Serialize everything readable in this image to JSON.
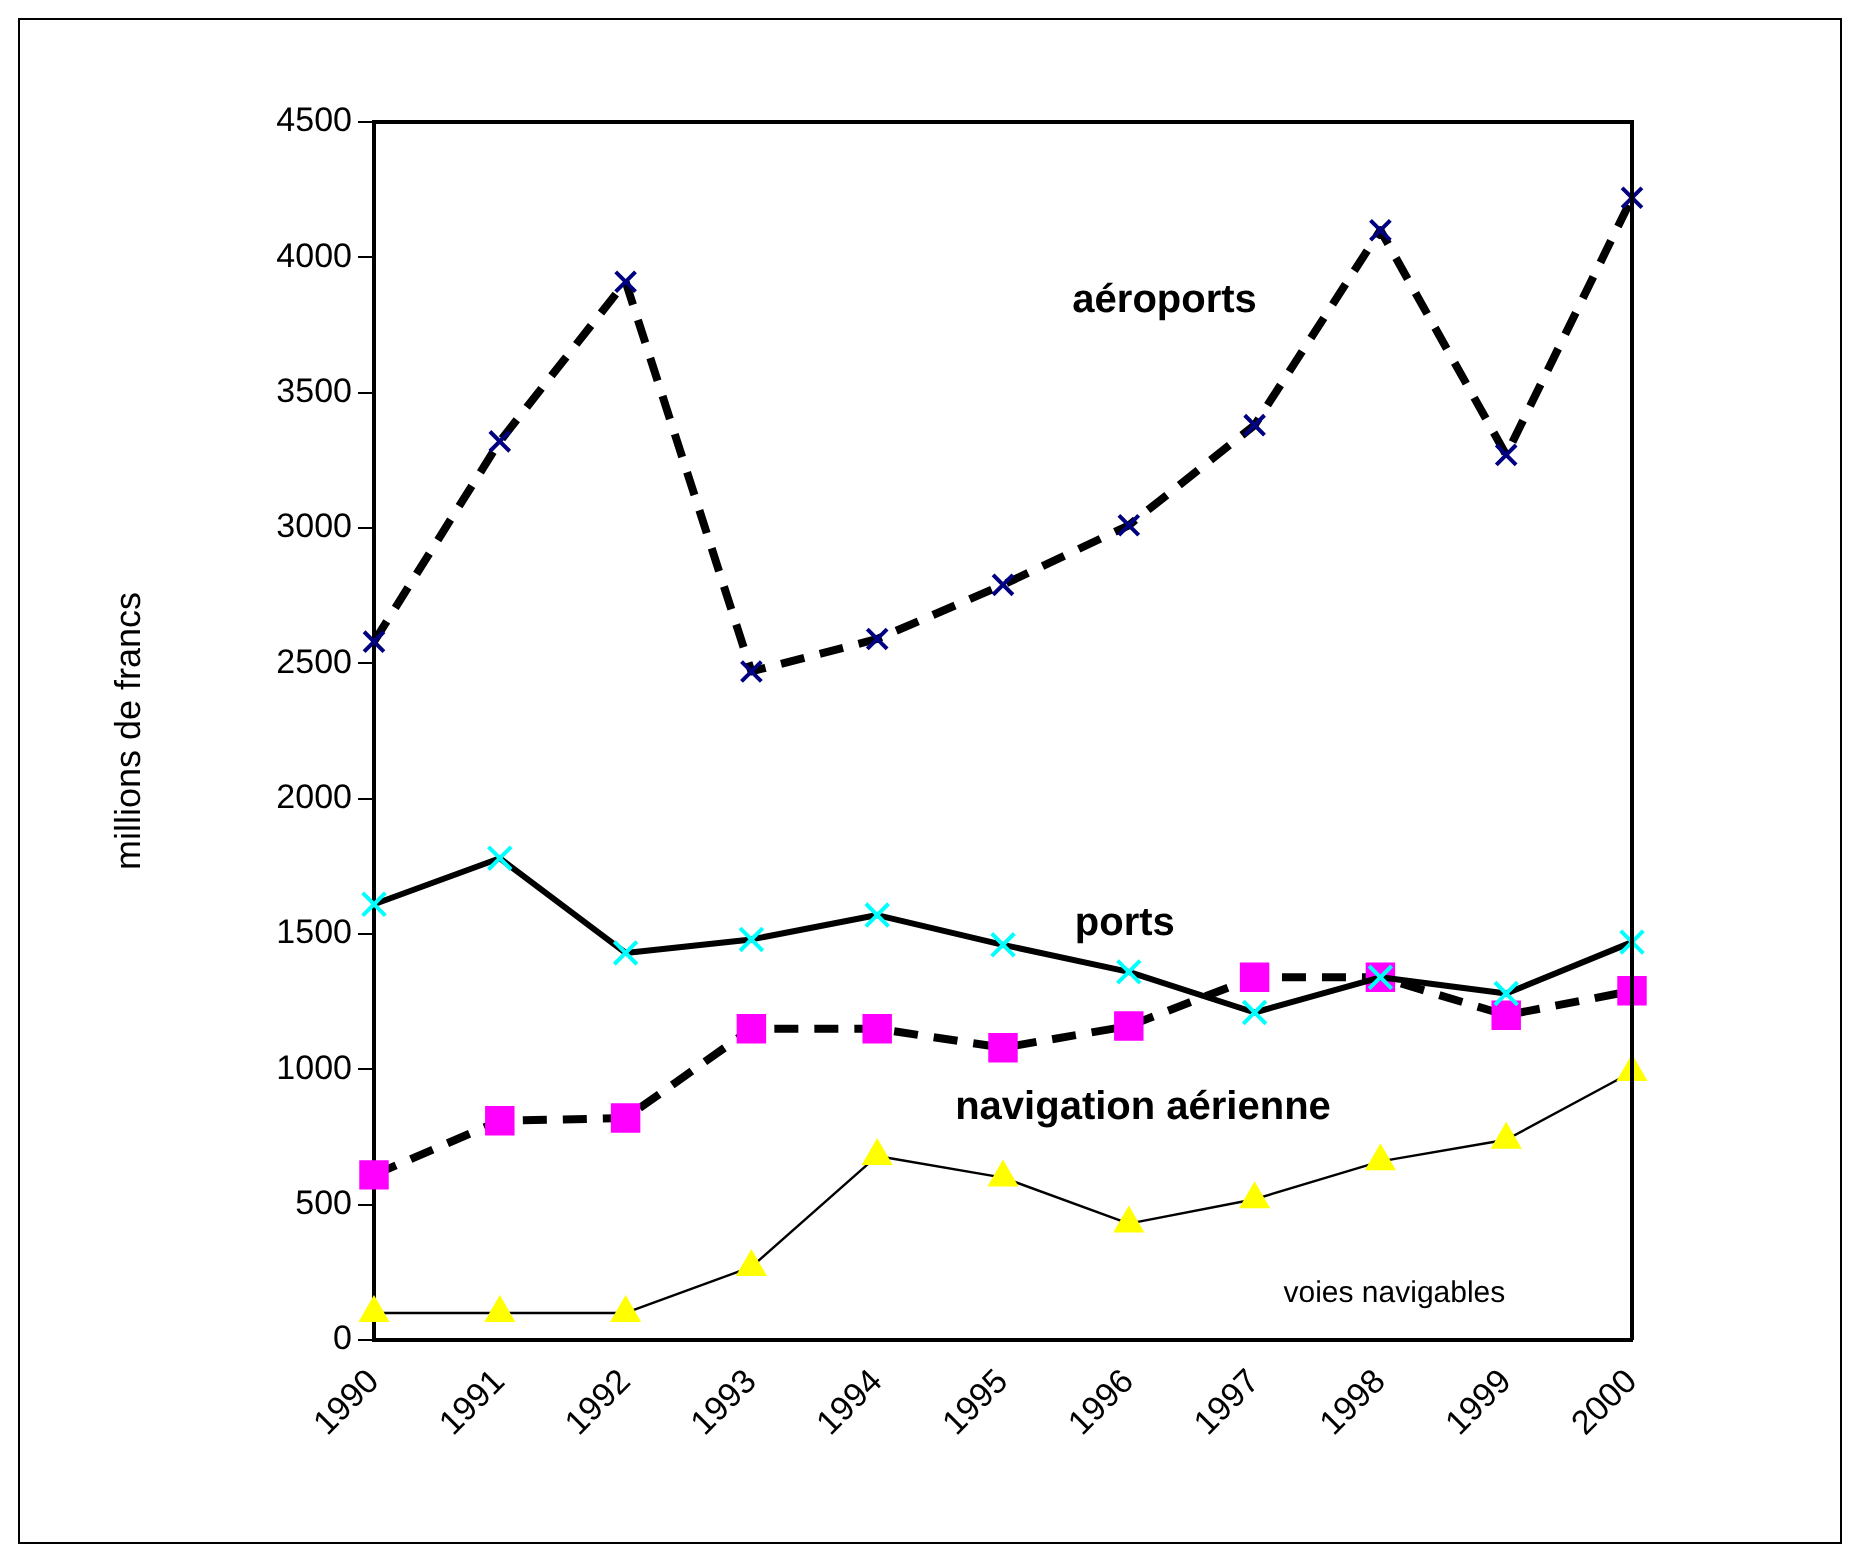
{
  "chart_data": {
    "type": "line",
    "ylabel": "millions de francs",
    "categories": [
      "1990",
      "1991",
      "1992",
      "1993",
      "1994",
      "1995",
      "1996",
      "1997",
      "1998",
      "1999",
      "2000"
    ],
    "series": [
      {
        "name": "aéroports",
        "color": "#000080",
        "marker": "cross",
        "line_style": "dashed",
        "values": [
          2580,
          3320,
          3910,
          2470,
          2590,
          2790,
          3010,
          3380,
          4100,
          3270,
          4220
        ]
      },
      {
        "name": "ports",
        "color": "#00ffff",
        "marker": "cross",
        "line_style": "solid",
        "values": [
          1610,
          1780,
          1430,
          1480,
          1570,
          1460,
          1360,
          1210,
          1340,
          1280,
          1470
        ]
      },
      {
        "name": "navigation aérienne",
        "color": "#ff00ff",
        "marker": "square",
        "line_style": "dashed",
        "values": [
          610,
          810,
          820,
          1150,
          1150,
          1080,
          1160,
          1340,
          1340,
          1200,
          1290
        ]
      },
      {
        "name": "voies navigables",
        "color": "#ffff00",
        "marker": "triangle",
        "line_style": "solid",
        "values": [
          100,
          100,
          100,
          270,
          680,
          600,
          430,
          520,
          660,
          740,
          990
        ]
      }
    ],
    "ylim": [
      0,
      4500
    ],
    "yticks": [
      0,
      500,
      1000,
      1500,
      2000,
      2500,
      3000,
      3500,
      4000,
      4500
    ],
    "grid": false,
    "legend": false
  }
}
